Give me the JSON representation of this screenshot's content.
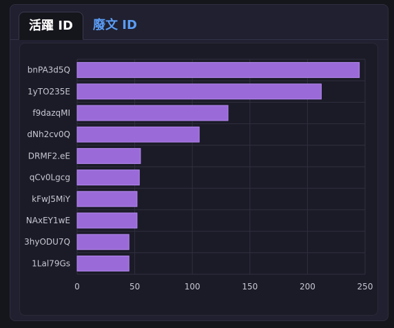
{
  "tabs": [
    {
      "label": "活躍 ID",
      "active": true
    },
    {
      "label": "廢文 ID",
      "active": false
    }
  ],
  "colors": {
    "bar": "#9a6bd8",
    "bar_stroke": "#b488ee",
    "grid": "#2f2f3e",
    "text": "#c8c8d2",
    "active_tab": "#ffffff",
    "inactive_tab": "#5b9cf4"
  },
  "chart_data": {
    "type": "bar",
    "orientation": "horizontal",
    "categories": [
      "bnPA3d5Q",
      "1yTO235E",
      "f9dazqMI",
      "dNh2cv0Q",
      "DRMF2.eE",
      "qCv0Lgcg",
      "kFwJ5MiY",
      "NAxEY1wE",
      "3hyODU7Q",
      "1Lal79Gs"
    ],
    "values": [
      245,
      212,
      131,
      106,
      55,
      54,
      52,
      52,
      45,
      45
    ],
    "xlim": [
      0,
      250
    ],
    "xticks": [
      0,
      50,
      100,
      150,
      200,
      250
    ],
    "grid": true
  }
}
